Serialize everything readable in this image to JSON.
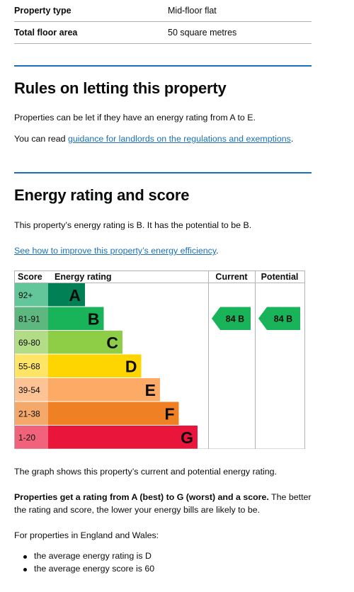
{
  "summary": {
    "rows": [
      {
        "label": "Property type",
        "value": "Mid-floor flat"
      },
      {
        "label": "Total floor area",
        "value": "50 square metres"
      }
    ]
  },
  "letting": {
    "heading": "Rules on letting this property",
    "text": "Properties can be let if they have an energy rating from A to E.",
    "read_prefix": "You can read ",
    "link_text": "guidance for landlords on the regulations and exemptions",
    "read_suffix": "."
  },
  "energy": {
    "heading": "Energy rating and score",
    "text": "This property’s energy rating is B. It has the potential to be B.",
    "improve_link": "See how to improve this property’s energy efficiency",
    "improve_suffix": ".",
    "graph_caption": "The graph shows this property’s current and potential energy rating.",
    "bold_text": "Properties get a rating from A (best) to G (worst) and a score.",
    "rest_text": " The better the rating and score, the lower your energy bills are likely to be.",
    "avg_intro": "For properties in England and Wales:",
    "avg_items": [
      "the average energy rating is D",
      "the average energy score is 60"
    ]
  },
  "chart_data": {
    "type": "bar",
    "headers": {
      "score": "Score",
      "rating": "Energy rating",
      "current": "Current",
      "potential": "Potential"
    },
    "bands": [
      {
        "score": "92+",
        "letter": "A",
        "color": "#008054",
        "score_color": "#62c69a"
      },
      {
        "score": "81-91",
        "letter": "B",
        "color": "#19b459",
        "score_color": "#5fb780"
      },
      {
        "score": "69-80",
        "letter": "C",
        "color": "#8dce46",
        "score_color": "#b2dc86"
      },
      {
        "score": "55-68",
        "letter": "D",
        "color": "#ffd500",
        "score_color": "#ffe466"
      },
      {
        "score": "39-54",
        "letter": "E",
        "color": "#fcaa65",
        "score_color": "#fdc394"
      },
      {
        "score": "21-38",
        "letter": "F",
        "color": "#ef8023",
        "score_color": "#f4a86a"
      },
      {
        "score": "1-20",
        "letter": "G",
        "color": "#e9153b",
        "score_color": "#f0637a"
      }
    ],
    "current": {
      "value": 84,
      "letter": "B",
      "label": "84  B"
    },
    "potential": {
      "value": 84,
      "letter": "B",
      "label": "84  B"
    },
    "arrow_color": "#19b459"
  }
}
